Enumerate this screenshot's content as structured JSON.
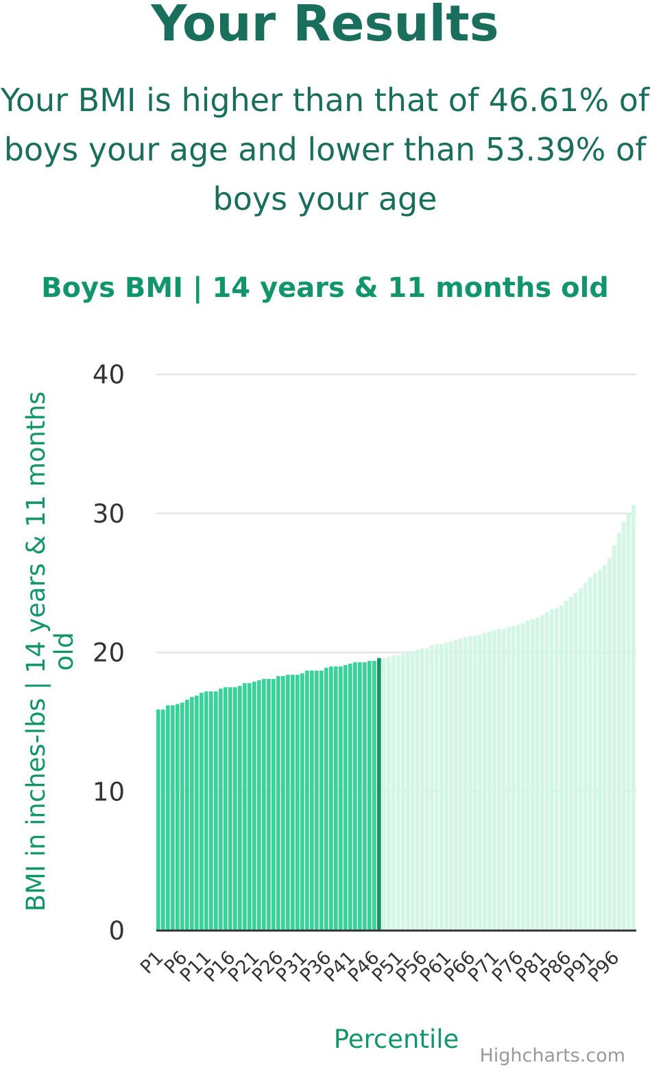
{
  "heading": "Your Results",
  "summary": "Your BMI is higher than that of 46.61% of boys your age and lower than 53.39% of boys your age",
  "credit": "Highcharts.com",
  "colors": {
    "heading": "#1a6e5c",
    "accent": "#12956a",
    "bar_below": "#38d398",
    "bar_highlight": "#139561",
    "bar_above": "#d2f7e5",
    "grid": "#e6e6e6",
    "axis_line": "#333333",
    "tick_text": "#333333"
  },
  "chart_data": {
    "type": "bar",
    "title": "Boys BMI | 14 years & 11 months old",
    "xlabel": "Percentile",
    "ylabel": "BMI in inches-lbs | 14 years & 11 months old",
    "ylim": [
      0,
      40
    ],
    "yticks": [
      0,
      10,
      20,
      30,
      40
    ],
    "grid": true,
    "highlight_category": "P47",
    "categories": [
      "P1",
      "P2",
      "P3",
      "P4",
      "P5",
      "P6",
      "P7",
      "P8",
      "P9",
      "P10",
      "P11",
      "P12",
      "P13",
      "P14",
      "P15",
      "P16",
      "P17",
      "P18",
      "P19",
      "P20",
      "P21",
      "P22",
      "P23",
      "P24",
      "P25",
      "P26",
      "P27",
      "P28",
      "P29",
      "P30",
      "P31",
      "P32",
      "P33",
      "P34",
      "P35",
      "P36",
      "P37",
      "P38",
      "P39",
      "P40",
      "P41",
      "P42",
      "P43",
      "P44",
      "P45",
      "P46",
      "P47",
      "P48",
      "P49",
      "P50",
      "P51",
      "P52",
      "P53",
      "P54",
      "P55",
      "P56",
      "P57",
      "P58",
      "P59",
      "P60",
      "P61",
      "P62",
      "P63",
      "P64",
      "P65",
      "P66",
      "P67",
      "P68",
      "P69",
      "P70",
      "P71",
      "P72",
      "P73",
      "P74",
      "P75",
      "P76",
      "P77",
      "P78",
      "P79",
      "P80",
      "P81",
      "P82",
      "P83",
      "P84",
      "P85",
      "P86",
      "P87",
      "P88",
      "P89",
      "P90",
      "P91",
      "P92",
      "P93",
      "P94",
      "P95",
      "P96",
      "P97",
      "P98",
      "P99",
      "P100"
    ],
    "xticks": [
      "P1",
      "P6",
      "P11",
      "P16",
      "P21",
      "P26",
      "P31",
      "P36",
      "P41",
      "P46",
      "P51",
      "P56",
      "P61",
      "P66",
      "P71",
      "P76",
      "P81",
      "P86",
      "P91",
      "P96"
    ],
    "values": [
      15.9,
      15.9,
      16.2,
      16.2,
      16.3,
      16.4,
      16.6,
      16.8,
      16.9,
      17.1,
      17.2,
      17.2,
      17.2,
      17.4,
      17.5,
      17.5,
      17.5,
      17.6,
      17.8,
      17.8,
      17.9,
      18.0,
      18.1,
      18.1,
      18.1,
      18.3,
      18.3,
      18.4,
      18.4,
      18.4,
      18.5,
      18.7,
      18.7,
      18.7,
      18.7,
      18.9,
      19.0,
      19.0,
      19.0,
      19.1,
      19.2,
      19.3,
      19.3,
      19.3,
      19.4,
      19.4,
      19.6,
      19.6,
      19.7,
      19.8,
      19.8,
      19.9,
      20.0,
      20.1,
      20.2,
      20.3,
      20.3,
      20.5,
      20.6,
      20.6,
      20.7,
      20.8,
      20.9,
      21.0,
      21.1,
      21.2,
      21.2,
      21.3,
      21.4,
      21.5,
      21.6,
      21.7,
      21.7,
      21.8,
      21.9,
      22.0,
      22.1,
      22.3,
      22.4,
      22.5,
      22.7,
      22.9,
      23.1,
      23.2,
      23.4,
      23.7,
      24.0,
      24.3,
      24.6,
      25.0,
      25.4,
      25.7,
      26.0,
      26.3,
      26.8,
      27.7,
      28.6,
      29.4,
      30.0,
      30.6
    ]
  }
}
